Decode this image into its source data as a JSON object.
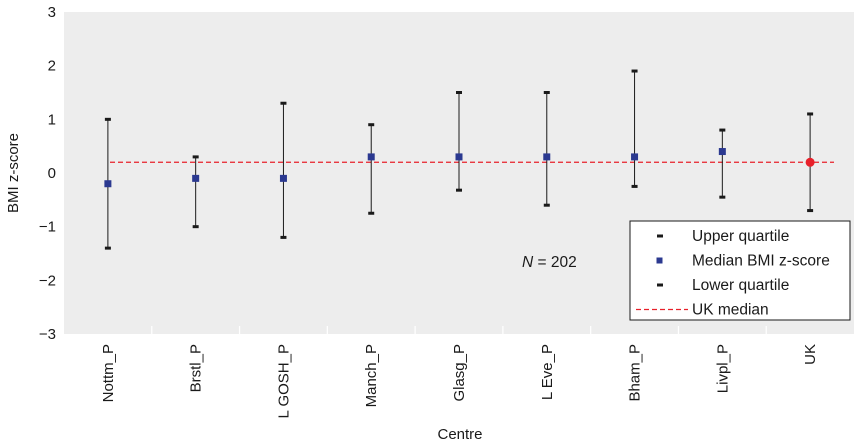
{
  "chart_data": {
    "type": "errorbar",
    "xlabel": "Centre",
    "ylabel": "BMI z-score",
    "ylim": [
      -3,
      3
    ],
    "yticks": [
      "3",
      "2",
      "1",
      "0",
      "−1",
      "−2",
      "−3"
    ],
    "categories": [
      "Nottm_P",
      "Brstl_P",
      "L GOSH_P",
      "Manch_P",
      "Glasg_P",
      "L Eve_P",
      "Bham_P",
      "Livpl_P",
      "UK"
    ],
    "series": [
      {
        "name": "Upper quartile",
        "values": [
          1.0,
          0.3,
          1.3,
          0.9,
          1.5,
          1.5,
          1.9,
          0.8,
          1.1
        ]
      },
      {
        "name": "Median BMI z-score",
        "values": [
          -0.2,
          -0.1,
          -0.1,
          0.3,
          0.3,
          0.3,
          0.3,
          0.4,
          0.2
        ]
      },
      {
        "name": "Lower quartile",
        "values": [
          -1.4,
          -1.0,
          -1.2,
          -0.75,
          -0.32,
          -0.6,
          -0.25,
          -0.45,
          -0.7
        ]
      }
    ],
    "reference_line": {
      "name": "UK median",
      "value": 0.2
    },
    "annotation": {
      "italic": "N",
      "rest": " = 202"
    },
    "grid": false,
    "legend_position": "bottom-right",
    "colors": {
      "plot_background": "#ededed",
      "median_marker": "#2b3990",
      "uk_marker": "#e8202a",
      "reference_line": "#e8202a",
      "whisker": "#1a1a1a"
    }
  }
}
